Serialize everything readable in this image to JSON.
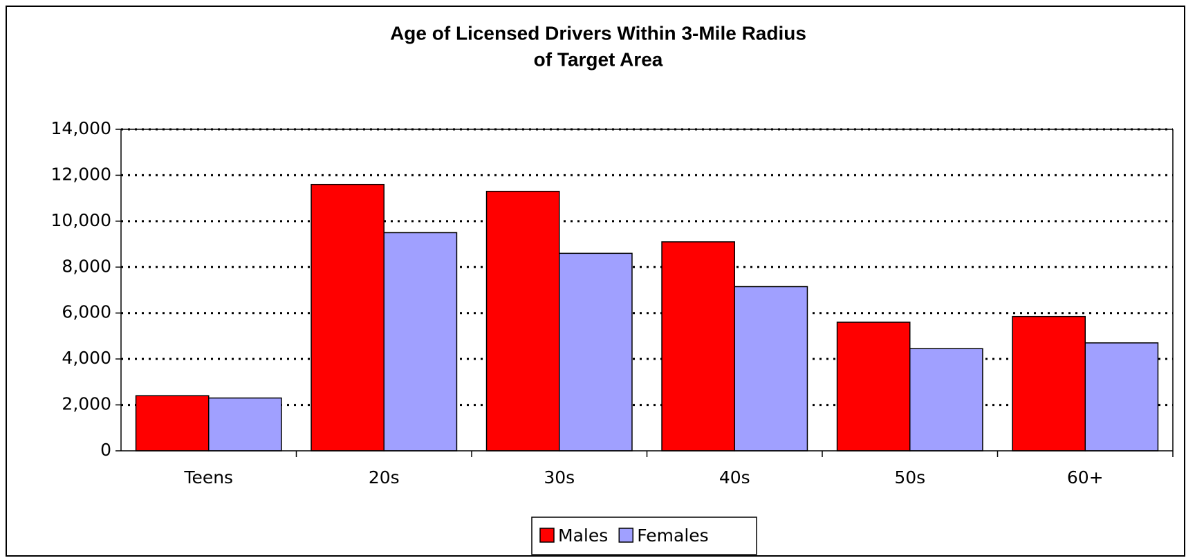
{
  "chart_data": {
    "type": "bar",
    "title": [
      "Age of Licensed Drivers Within 3-Mile Radius",
      "of Target Area"
    ],
    "categories": [
      "Teens",
      "20s",
      "30s",
      "40s",
      "50s",
      "60+"
    ],
    "series": [
      {
        "name": "Males",
        "color": "#ff0000",
        "values": [
          2400,
          11600,
          11300,
          9100,
          5600,
          5850
        ]
      },
      {
        "name": "Females",
        "color": "#a0a0ff",
        "values": [
          2300,
          9500,
          8600,
          7150,
          4450,
          4700
        ]
      }
    ],
    "ylim": [
      0,
      14000
    ],
    "yticks": [
      0,
      {
        "value": 2000,
        "label": "2,000"
      },
      {
        "value": 4000,
        "label": "4,000"
      },
      {
        "value": 6000,
        "label": "6,000"
      },
      {
        "value": 8000,
        "label": "8,000"
      },
      {
        "value": 10000,
        "label": "10,000"
      },
      {
        "value": 12000,
        "label": "12,000"
      },
      {
        "value": 14000,
        "label": "14,000"
      }
    ],
    "grid": true,
    "legend": "bottom"
  }
}
